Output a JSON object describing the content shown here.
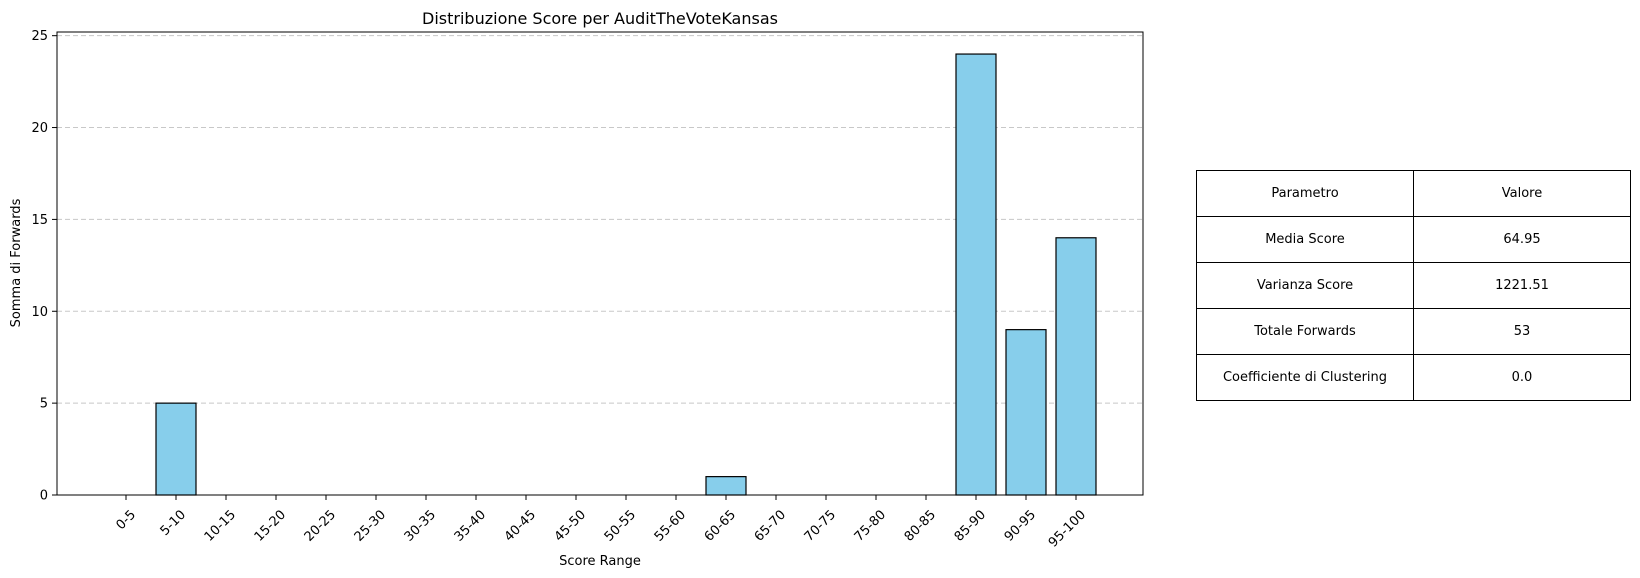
{
  "chart_data": {
    "type": "bar",
    "title": "Distribuzione Score per AuditTheVoteKansas",
    "xlabel": "Score Range",
    "ylabel": "Somma di Forwards",
    "categories": [
      "0-5",
      "5-10",
      "10-15",
      "15-20",
      "20-25",
      "25-30",
      "30-35",
      "35-40",
      "40-45",
      "45-50",
      "50-55",
      "55-60",
      "60-65",
      "65-70",
      "70-75",
      "75-80",
      "80-85",
      "85-90",
      "90-95",
      "95-100"
    ],
    "values": [
      0,
      5,
      0,
      0,
      0,
      0,
      0,
      0,
      0,
      0,
      0,
      0,
      1,
      0,
      0,
      0,
      0,
      24,
      9,
      14
    ],
    "ylim": [
      0,
      25.2
    ],
    "yticks": [
      0,
      5,
      10,
      15,
      20,
      25
    ],
    "grid": "y-dashed",
    "bar_color": "#87ceeb",
    "edge_color": "#000000"
  },
  "table": {
    "header": [
      "Parametro",
      "Valore"
    ],
    "rows": [
      [
        "Media Score",
        "64.95"
      ],
      [
        "Varianza Score",
        "1221.51"
      ],
      [
        "Totale Forwards",
        "53"
      ],
      [
        "Coefficiente di Clustering",
        "0.0"
      ]
    ]
  }
}
